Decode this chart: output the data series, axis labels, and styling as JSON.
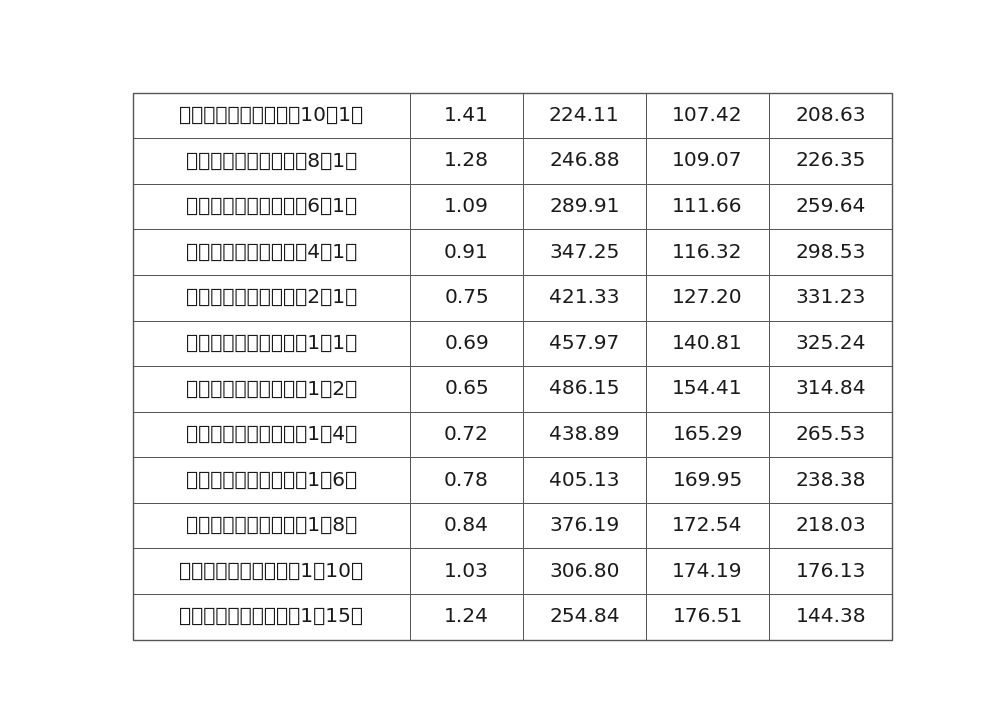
{
  "rows": [
    [
      "环溝虫酮胺：厘虫啼（10：1）",
      "1.41",
      "224.11",
      "107.42",
      "208.63"
    ],
    [
      "环溝虫酮胺：厘虫啼（8：1）",
      "1.28",
      "246.88",
      "109.07",
      "226.35"
    ],
    [
      "环溝虫酮胺：厘虫啼（6：1）",
      "1.09",
      "289.91",
      "111.66",
      "259.64"
    ],
    [
      "环溝虫酮胺：厘虫啼（4：1）",
      "0.91",
      "347.25",
      "116.32",
      "298.53"
    ],
    [
      "环溝虫酮胺：厘虫啼（2：1）",
      "0.75",
      "421.33",
      "127.20",
      "331.23"
    ],
    [
      "环溝虫酮胺：厘虫啼（1：1）",
      "0.69",
      "457.97",
      "140.81",
      "325.24"
    ],
    [
      "环溝虫酮胺：厘虫啼（1：2）",
      "0.65",
      "486.15",
      "154.41",
      "314.84"
    ],
    [
      "环溝虫酮胺：厘虫啼（1：4）",
      "0.72",
      "438.89",
      "165.29",
      "265.53"
    ],
    [
      "环溝虫酮胺：厘虫啼（1：6）",
      "0.78",
      "405.13",
      "169.95",
      "238.38"
    ],
    [
      "环溝虫酮胺：厘虫啼（1：8）",
      "0.84",
      "376.19",
      "172.54",
      "218.03"
    ],
    [
      "环溝虫酮胺：厘虫啼（1：10）",
      "1.03",
      "306.80",
      "174.19",
      "176.13"
    ],
    [
      "环溝虫酮胺：厘虫啼（1：15）",
      "1.24",
      "254.84",
      "176.51",
      "144.38"
    ]
  ],
  "background_color": "#ffffff",
  "border_color": "#555555",
  "text_color": "#1a1a1a",
  "font_size": 14.5,
  "fig_width": 10.0,
  "fig_height": 7.25
}
